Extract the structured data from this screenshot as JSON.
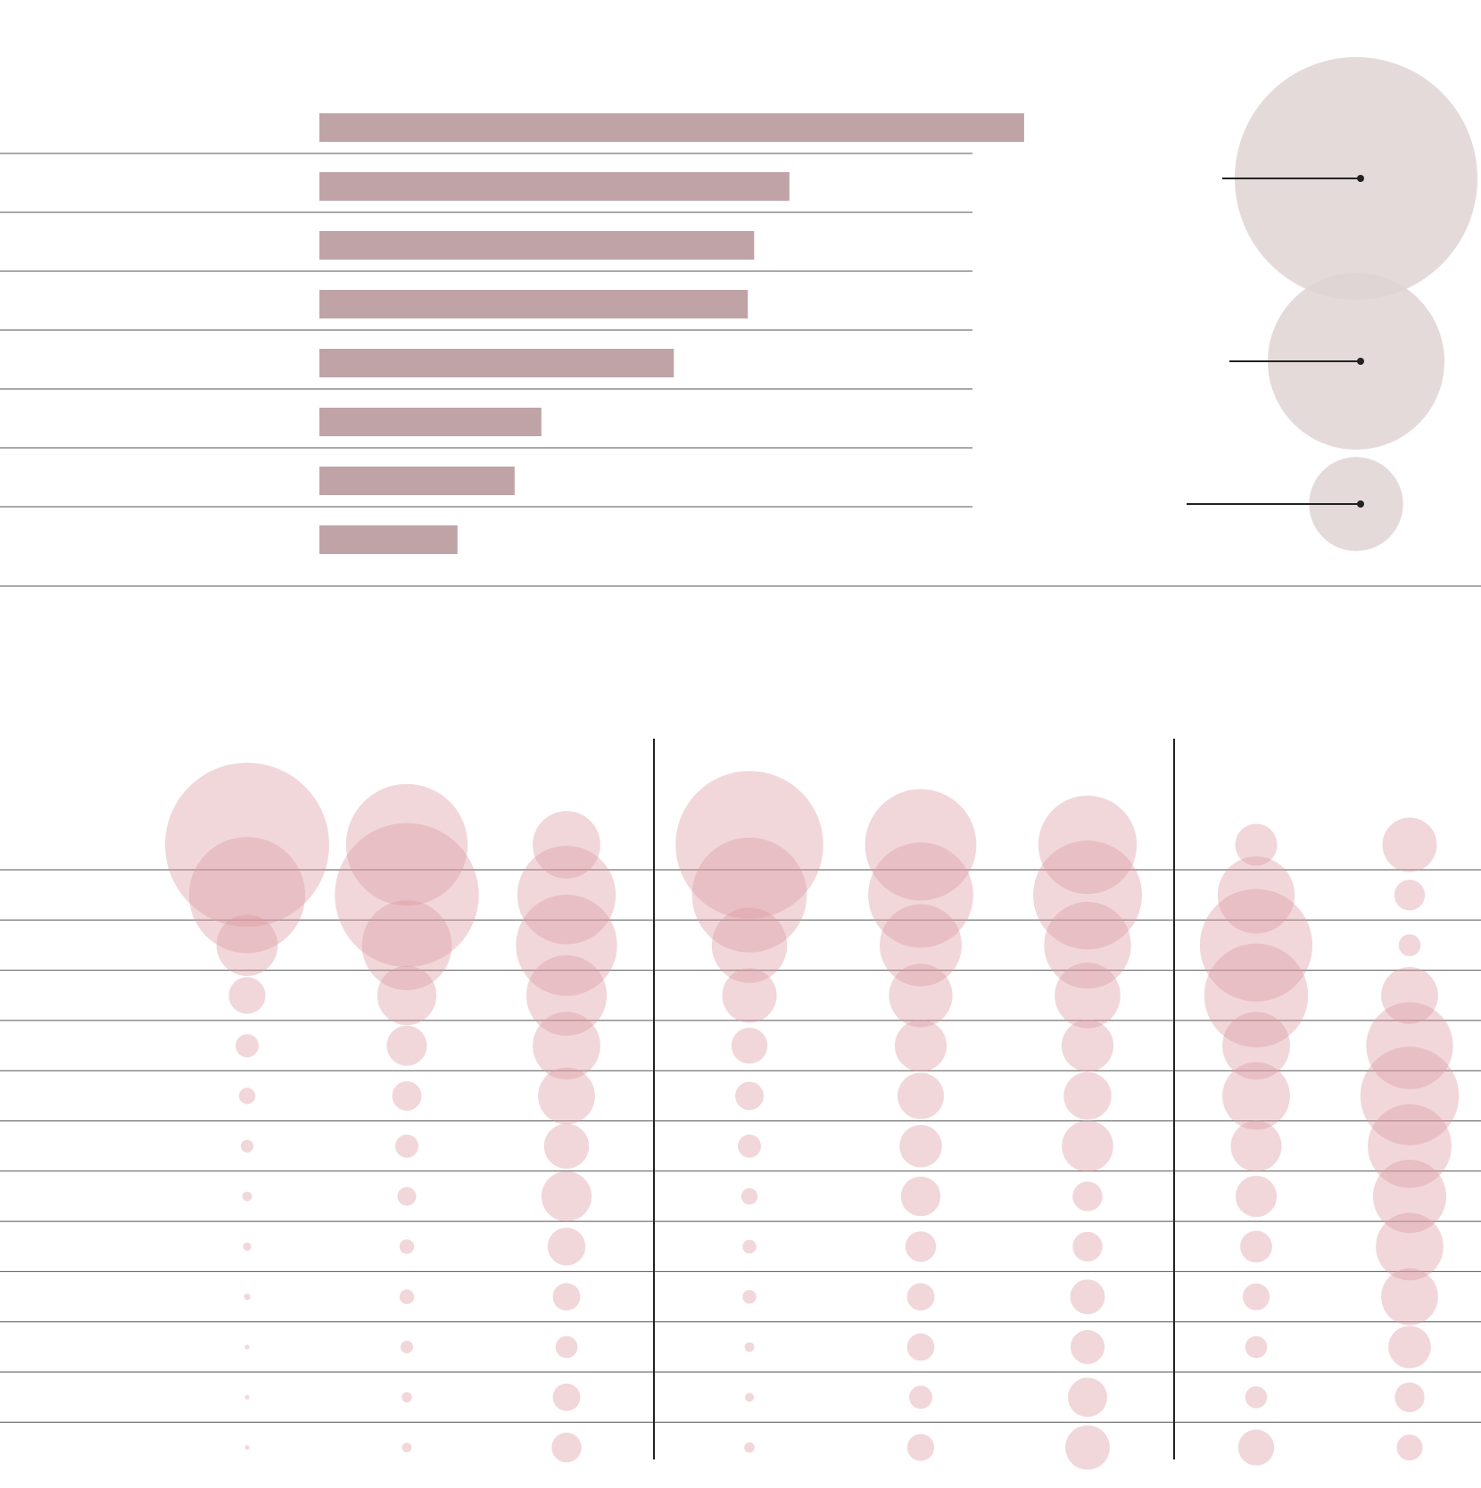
{
  "colors": {
    "bar": "#bfa3a7",
    "legend_bubble": "#dfd3d4",
    "matrix_bubble": "#dc9aa3",
    "rule": "#555555",
    "separator": "#222222",
    "leader": "#222222"
  },
  "chart_data": [
    {
      "type": "bar",
      "orientation": "horizontal",
      "title": "",
      "xlabel": "",
      "ylabel": "",
      "categories": [
        "",
        "",
        "",
        "",
        "",
        "",
        "",
        ""
      ],
      "values": [
        100,
        66.7,
        61.7,
        60.8,
        50.3,
        31.5,
        27.7,
        19.6
      ],
      "xlim": [
        0,
        138
      ]
    },
    {
      "type": "scatter",
      "role": "bubble-size-legend",
      "sizes": [
        100,
        53,
        15
      ],
      "labels": [
        "",
        "",
        ""
      ]
    },
    {
      "type": "scatter",
      "role": "bubble-matrix",
      "title": "",
      "column_groups": [
        {
          "name": "",
          "columns": 3
        },
        {
          "name": "",
          "columns": 3
        },
        {
          "name": "",
          "columns": 2
        }
      ],
      "rows": [
        "",
        "",
        "",
        "",
        "",
        "",
        "",
        "",
        "",
        "",
        "",
        "",
        ""
      ],
      "series": [
        {
          "name": "",
          "values": [
            100,
            50,
            14,
            5,
            2,
            1,
            0.6,
            0.35,
            0.25,
            0.15,
            0.08,
            0.05,
            0.03
          ]
        },
        {
          "name": "",
          "values": [
            55,
            77,
            30,
            13,
            6,
            3.2,
            2,
            1.3,
            0.8,
            0.8,
            0.6,
            0.4,
            0.35
          ]
        },
        {
          "name": "",
          "values": [
            17,
            36,
            38,
            24,
            17,
            12,
            7.5,
            9.3,
            5.3,
            2.8,
            1.8,
            2.8,
            3.3
          ]
        },
        {
          "name": "",
          "values": [
            81,
            49,
            21,
            11,
            4.8,
            3,
            2,
            1,
            0.7,
            0.7,
            0.35,
            0.3,
            0.4
          ]
        },
        {
          "name": "",
          "values": [
            46,
            41,
            25,
            15,
            10,
            8,
            6.7,
            5.8,
            3.5,
            2.8,
            2.8,
            2,
            2.7
          ]
        },
        {
          "name": "",
          "values": [
            36,
            44,
            28,
            16,
            10,
            8.4,
            9.8,
            3.3,
            3.3,
            4.5,
            4.3,
            5.7,
            7.3
          ]
        },
        {
          "name": "",
          "values": [
            6.5,
            22,
            47,
            40,
            17,
            17,
            9.6,
            6.3,
            3.8,
            2.7,
            1.8,
            1.8,
            4.8
          ]
        },
        {
          "name": "",
          "values": [
            11,
            3.5,
            1.8,
            12,
            28,
            36,
            26,
            20,
            17,
            12,
            6.7,
            3.3,
            2.5
          ]
        }
      ]
    }
  ]
}
